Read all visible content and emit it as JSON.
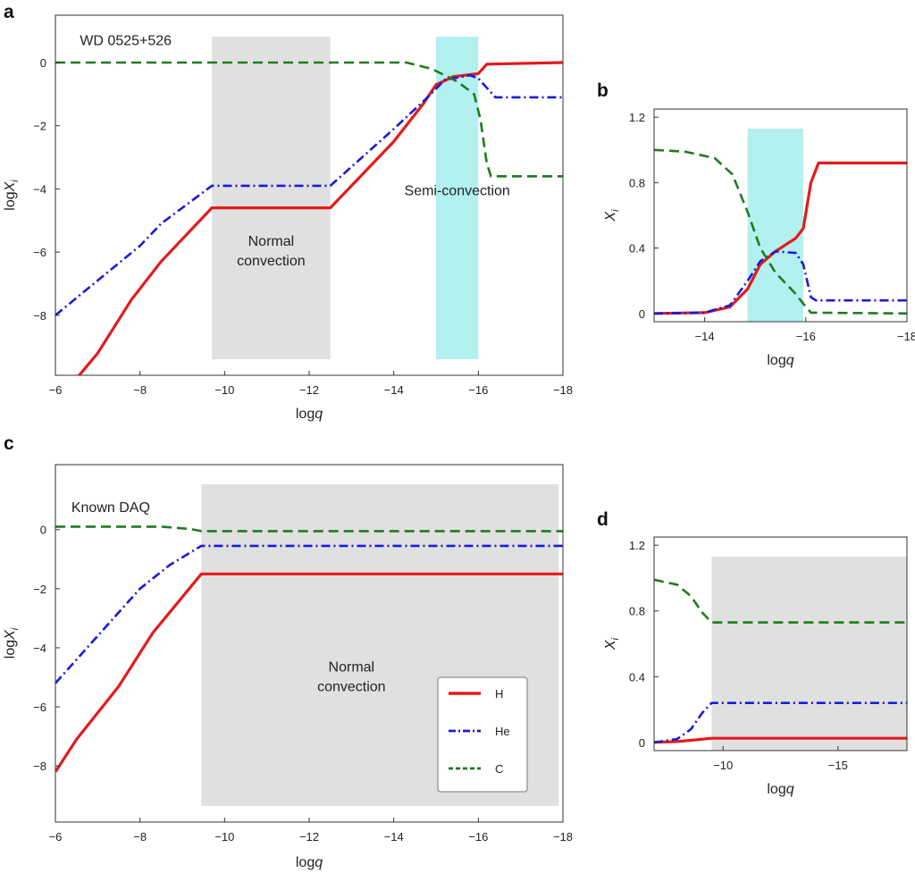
{
  "colors": {
    "H": "#e41a1c",
    "He": "#1a1adb",
    "C": "#1f7a1f",
    "gray": "#e0e0e0",
    "cyan": "#b3f0f0"
  },
  "chart_data": [
    {
      "panel": "a",
      "type": "line",
      "xlabel": "logq",
      "ylabel": "logX",
      "ylabel_sub": "i",
      "xlim": [
        -6,
        -18
      ],
      "ylim": [
        -9.9,
        1.5
      ],
      "xticks": [
        -6,
        -8,
        -10,
        -12,
        -14,
        -16,
        -18
      ],
      "yticks": [
        0,
        -2,
        -4,
        -6,
        -8
      ],
      "regions": [
        {
          "x": [
            -9.7,
            -12.5
          ],
          "color": "gray",
          "label": [
            "Normal",
            "convection"
          ],
          "label_at": [
            -11.1,
            -5.8
          ]
        },
        {
          "x": [
            -15,
            -16
          ],
          "color": "cyan",
          "label": [
            "Semi-convection"
          ],
          "label_at": [
            -15.5,
            -4.2
          ]
        }
      ],
      "annotations": [
        {
          "text": "WD 0525+526",
          "at": [
            -7.0,
            0.55
          ]
        }
      ],
      "series": [
        {
          "name": "H",
          "style": "solid",
          "color": "H",
          "points": [
            [
              -6.5,
              -10
            ],
            [
              -7,
              -9.2
            ],
            [
              -7.8,
              -7.5
            ],
            [
              -8.5,
              -6.3
            ],
            [
              -9.7,
              -4.6
            ],
            [
              -12.5,
              -4.6
            ],
            [
              -14,
              -2.5
            ],
            [
              -14.7,
              -1.3
            ],
            [
              -15,
              -0.7
            ],
            [
              -15.4,
              -0.45
            ],
            [
              -16,
              -0.35
            ],
            [
              -16.2,
              -0.05
            ],
            [
              -18,
              0
            ]
          ]
        },
        {
          "name": "He",
          "style": "dashdot",
          "color": "He",
          "points": [
            [
              -6,
              -8
            ],
            [
              -7,
              -6.9
            ],
            [
              -8,
              -5.8
            ],
            [
              -8.5,
              -5.1
            ],
            [
              -9.7,
              -3.9
            ],
            [
              -12.5,
              -3.9
            ],
            [
              -14,
              -2.1
            ],
            [
              -14.8,
              -1.1
            ],
            [
              -15.2,
              -0.55
            ],
            [
              -15.8,
              -0.4
            ],
            [
              -16,
              -0.5
            ],
            [
              -16.4,
              -1.1
            ],
            [
              -18,
              -1.1
            ]
          ]
        },
        {
          "name": "C",
          "style": "dashed",
          "color": "C",
          "points": [
            [
              -6,
              0
            ],
            [
              -14.3,
              0
            ],
            [
              -14.9,
              -0.2
            ],
            [
              -15.5,
              -0.6
            ],
            [
              -15.9,
              -1.0
            ],
            [
              -16.05,
              -1.8
            ],
            [
              -16.2,
              -3.2
            ],
            [
              -16.3,
              -3.6
            ],
            [
              -18,
              -3.6
            ]
          ]
        }
      ]
    },
    {
      "panel": "b",
      "type": "line",
      "xlabel": "logq",
      "ylabel": "X",
      "ylabel_sub": "i",
      "xlim": [
        -13,
        -18
      ],
      "ylim": [
        -0.05,
        1.25
      ],
      "xticks": [
        -14,
        -16,
        -18
      ],
      "yticks": [
        0,
        0.4,
        0.8,
        1.2
      ],
      "regions": [
        {
          "x": [
            -14.85,
            -15.95
          ],
          "color": "cyan"
        }
      ],
      "series": [
        {
          "name": "H",
          "style": "solid",
          "color": "H",
          "points": [
            [
              -13,
              0
            ],
            [
              -14,
              0.005
            ],
            [
              -14.5,
              0.04
            ],
            [
              -14.85,
              0.15
            ],
            [
              -15.1,
              0.3
            ],
            [
              -15.4,
              0.38
            ],
            [
              -15.8,
              0.46
            ],
            [
              -15.95,
              0.52
            ],
            [
              -16.1,
              0.8
            ],
            [
              -16.25,
              0.92
            ],
            [
              -18,
              0.92
            ]
          ]
        },
        {
          "name": "He",
          "style": "dashdot",
          "color": "He",
          "points": [
            [
              -13,
              0
            ],
            [
              -14,
              0.005
            ],
            [
              -14.5,
              0.05
            ],
            [
              -14.85,
              0.2
            ],
            [
              -15.1,
              0.32
            ],
            [
              -15.4,
              0.38
            ],
            [
              -15.8,
              0.37
            ],
            [
              -15.95,
              0.3
            ],
            [
              -16.1,
              0.1
            ],
            [
              -16.2,
              0.08
            ],
            [
              -18,
              0.08
            ]
          ]
        },
        {
          "name": "C",
          "style": "dashed",
          "color": "C",
          "points": [
            [
              -13,
              1
            ],
            [
              -13.6,
              0.99
            ],
            [
              -14.2,
              0.95
            ],
            [
              -14.55,
              0.85
            ],
            [
              -14.85,
              0.62
            ],
            [
              -15.1,
              0.4
            ],
            [
              -15.4,
              0.25
            ],
            [
              -15.8,
              0.12
            ],
            [
              -15.95,
              0.06
            ],
            [
              -16.1,
              0.005
            ],
            [
              -18,
              0
            ]
          ]
        }
      ]
    },
    {
      "panel": "c",
      "type": "line",
      "xlabel": "logq",
      "ylabel": "logX",
      "ylabel_sub": "i",
      "xlim": [
        -6,
        -18
      ],
      "ylim": [
        -9.9,
        2.2
      ],
      "xticks": [
        -6,
        -8,
        -10,
        -12,
        -14,
        -16,
        -18
      ],
      "yticks": [
        0,
        -2,
        -4,
        -6,
        -8
      ],
      "regions": [
        {
          "x": [
            -9.45,
            -17.9
          ],
          "color": "gray",
          "label": [
            "Normal",
            "convection"
          ],
          "label_at": [
            -13.0,
            -4.8
          ]
        }
      ],
      "annotations": [
        {
          "text": "Known DAQ",
          "at": [
            -6.8,
            0.6
          ]
        }
      ],
      "legend": {
        "location": "lower right",
        "entries": [
          "H",
          "He",
          "C"
        ]
      },
      "series": [
        {
          "name": "H",
          "style": "solid",
          "color": "H",
          "points": [
            [
              -6,
              -8.2
            ],
            [
              -6.5,
              -7.1
            ],
            [
              -7.5,
              -5.3
            ],
            [
              -8.3,
              -3.5
            ],
            [
              -9.45,
              -1.5
            ],
            [
              -18,
              -1.5
            ]
          ]
        },
        {
          "name": "He",
          "style": "dashdot",
          "color": "He",
          "points": [
            [
              -6,
              -5.2
            ],
            [
              -7,
              -3.6
            ],
            [
              -8,
              -2
            ],
            [
              -8.7,
              -1.2
            ],
            [
              -9.45,
              -0.55
            ],
            [
              -18,
              -0.55
            ]
          ]
        },
        {
          "name": "C",
          "style": "dashed",
          "color": "C",
          "points": [
            [
              -6,
              0.1
            ],
            [
              -8.5,
              0.1
            ],
            [
              -9.2,
              0.02
            ],
            [
              -9.45,
              -0.05
            ],
            [
              -18,
              -0.05
            ]
          ]
        }
      ]
    },
    {
      "panel": "d",
      "type": "line",
      "xlabel": "logq",
      "ylabel": "X",
      "ylabel_sub": "i",
      "xlim": [
        -7,
        -18
      ],
      "ylim": [
        -0.05,
        1.25
      ],
      "xticks": [
        -10,
        -15
      ],
      "yticks": [
        0,
        0.4,
        0.8,
        1.2
      ],
      "regions": [
        {
          "x": [
            -9.5,
            -18
          ],
          "color": "gray"
        }
      ],
      "series": [
        {
          "name": "H",
          "style": "solid",
          "color": "H",
          "points": [
            [
              -7,
              0
            ],
            [
              -8,
              0.005
            ],
            [
              -8.8,
              0.015
            ],
            [
              -9.5,
              0.025
            ],
            [
              -18,
              0.025
            ]
          ]
        },
        {
          "name": "He",
          "style": "dashdot",
          "color": "He",
          "points": [
            [
              -7,
              0
            ],
            [
              -8,
              0.02
            ],
            [
              -8.6,
              0.08
            ],
            [
              -9.1,
              0.18
            ],
            [
              -9.5,
              0.24
            ],
            [
              -18,
              0.24
            ]
          ]
        },
        {
          "name": "C",
          "style": "dashed",
          "color": "C",
          "points": [
            [
              -7,
              0.99
            ],
            [
              -8,
              0.96
            ],
            [
              -8.6,
              0.89
            ],
            [
              -9.1,
              0.79
            ],
            [
              -9.5,
              0.73
            ],
            [
              -18,
              0.73
            ]
          ]
        }
      ]
    }
  ]
}
